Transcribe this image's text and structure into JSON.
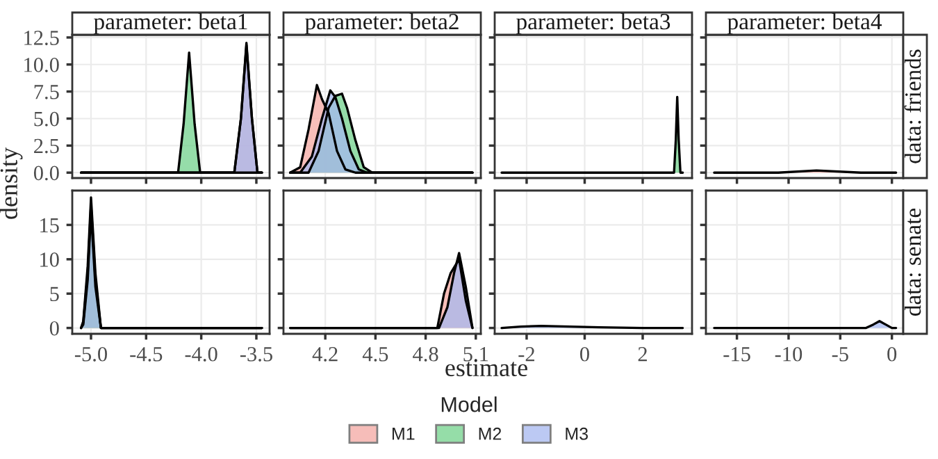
{
  "chart_data": [
    {
      "type": "area",
      "title": "parameter: beta1",
      "ylabel": "density",
      "legend": "bottom",
      "legend_title": "Model",
      "grid": true,
      "tick_labels": "y",
      "xlim": [
        -5.17,
        -3.38
      ],
      "xticks": [
        -5.0,
        -4.5,
        -4.0,
        -3.5
      ],
      "ylim": [
        -0.5,
        12.75
      ],
      "yticks": [
        {
          "value": 0,
          "label": "0.0"
        },
        {
          "value": 2.5,
          "label": "2.5"
        },
        {
          "value": 5,
          "label": "5.0"
        },
        {
          "value": 7.5,
          "label": "7.5"
        },
        {
          "value": 10,
          "label": "10.0"
        },
        {
          "value": 12.5,
          "label": "12.5"
        }
      ],
      "series": [
        {
          "name": "M1",
          "color": "#f4a8a2",
          "x": [
            -5.09,
            -3.7,
            -3.64,
            -3.59,
            -3.54,
            -3.49,
            -3.45
          ],
          "values": [
            0,
            0,
            5,
            11.8,
            5,
            0,
            0
          ]
        },
        {
          "name": "M2",
          "color": "#72d28c",
          "x": [
            -5.09,
            -4.21,
            -4.16,
            -4.11,
            -4.06,
            -4.01,
            -3.45
          ],
          "values": [
            0,
            0,
            4.5,
            11.1,
            4.5,
            0,
            0
          ]
        },
        {
          "name": "M3",
          "color": "#a6b8f0",
          "x": [
            -5.09,
            -3.7,
            -3.64,
            -3.59,
            -3.54,
            -3.49,
            -3.45
          ],
          "values": [
            0,
            0,
            5,
            12,
            5,
            0,
            0
          ]
        }
      ]
    },
    {
      "type": "area",
      "title": "parameter: beta2",
      "grid": true,
      "tick_labels": false,
      "xlim": [
        3.95,
        5.13
      ],
      "xticks": [
        4.2,
        4.5,
        4.8,
        5.1
      ],
      "ylim": [
        -0.5,
        12.75
      ],
      "yticks": [
        0,
        2.5,
        5,
        7.5,
        10,
        12.5
      ],
      "series": [
        {
          "name": "M1",
          "color": "#f4a8a2",
          "x": [
            3.99,
            4.05,
            4.1,
            4.15,
            4.18,
            4.22,
            4.27,
            4.32,
            4.38,
            5.08
          ],
          "values": [
            0,
            0.5,
            4,
            8.1,
            6.8,
            5.5,
            2,
            0.3,
            0,
            0
          ]
        },
        {
          "name": "M2",
          "color": "#72d28c",
          "x": [
            3.99,
            4.1,
            4.16,
            4.22,
            4.26,
            4.3,
            4.33,
            4.38,
            4.43,
            4.48,
            5.08
          ],
          "values": [
            0,
            0,
            2,
            6,
            7.1,
            7.3,
            6,
            3,
            0.5,
            0,
            0
          ]
        },
        {
          "name": "M3",
          "color": "#a6b8f0",
          "x": [
            3.99,
            4.05,
            4.12,
            4.18,
            4.23,
            4.26,
            4.3,
            4.35,
            4.4,
            4.45,
            5.08
          ],
          "values": [
            0,
            0,
            1.5,
            5,
            7.6,
            7,
            5,
            2,
            0.3,
            0,
            0
          ]
        }
      ]
    },
    {
      "type": "area",
      "title": "parameter: beta3",
      "grid": true,
      "tick_labels": false,
      "xlim": [
        -3.1,
        3.7
      ],
      "xticks": [
        -2,
        0,
        2
      ],
      "ylim": [
        -0.5,
        12.75
      ],
      "yticks": [
        0,
        2.5,
        5,
        7.5,
        10,
        12.5
      ],
      "series": [
        {
          "name": "M2",
          "color": "#72d28c",
          "x": [
            -2.86,
            3.08,
            3.14,
            3.19,
            3.24,
            3.3,
            3.38
          ],
          "values": [
            0,
            0,
            3,
            7,
            3,
            0,
            0
          ]
        }
      ]
    },
    {
      "type": "area",
      "title": "parameter: beta4",
      "y2label": "data: friends",
      "grid": true,
      "tick_labels": false,
      "xlim": [
        -18,
        1.1
      ],
      "xticks": [
        -15,
        -10,
        -5,
        0
      ],
      "ylim": [
        -0.5,
        12.75
      ],
      "yticks": [
        0,
        2.5,
        5,
        7.5,
        10,
        12.5
      ],
      "series": [
        {
          "name": "M1",
          "color": "#f4a8a2",
          "x": [
            -17.2,
            -11,
            -7.3,
            -3,
            0.4
          ],
          "values": [
            0,
            0,
            0.2,
            0,
            0
          ]
        }
      ]
    },
    {
      "type": "area",
      "grid": true,
      "xlim": [
        -5.17,
        -3.38
      ],
      "xticks": [
        {
          "value": -5.0,
          "label": "-5.0"
        },
        {
          "value": -4.5,
          "label": "-4.5"
        },
        {
          "value": -4.0,
          "label": "-4.0"
        },
        {
          "value": -3.5,
          "label": "-3.5"
        }
      ],
      "ylim": [
        -0.85,
        20
      ],
      "yticks": [
        0,
        5,
        10,
        15
      ],
      "series": [
        {
          "name": "M1",
          "color": "#f4a8a2",
          "x": [
            -5.09,
            -5.07,
            -5.03,
            -5.0,
            -4.96,
            -4.91,
            -3.45
          ],
          "values": [
            0,
            0.5,
            7,
            17,
            6,
            0,
            0
          ]
        },
        {
          "name": "M2",
          "color": "#72d28c",
          "x": [
            -5.09,
            -5.07,
            -5.03,
            -5.0,
            -4.96,
            -4.91,
            -3.45
          ],
          "values": [
            0,
            0.8,
            8,
            18,
            7,
            0,
            0
          ]
        },
        {
          "name": "M3",
          "color": "#a6b8f0",
          "x": [
            -5.09,
            -5.07,
            -5.03,
            -5.0,
            -4.96,
            -4.91,
            -3.45
          ],
          "values": [
            0,
            1,
            9,
            19,
            8,
            0,
            0
          ]
        }
      ]
    },
    {
      "type": "area",
      "xlabel": "estimate",
      "grid": true,
      "tick_labels": "x",
      "xlim": [
        3.95,
        5.13
      ],
      "xticks": [
        4.2,
        4.5,
        4.8,
        5.1
      ],
      "ylim": [
        -0.85,
        20
      ],
      "yticks": [
        0,
        5,
        10,
        15
      ],
      "series": [
        {
          "name": "M1",
          "color": "#f4a8a2",
          "x": [
            3.99,
            4.87,
            4.91,
            4.95,
            5.0,
            5.04,
            5.08
          ],
          "values": [
            0,
            0,
            5,
            8,
            10,
            4,
            0
          ]
        },
        {
          "name": "M3",
          "color": "#a6b8f0",
          "x": [
            3.99,
            4.88,
            4.93,
            4.97,
            5.0,
            5.04,
            5.08
          ],
          "values": [
            0,
            0,
            3,
            8,
            10.9,
            6,
            0
          ]
        }
      ]
    },
    {
      "type": "area",
      "grid": true,
      "tick_labels": "x",
      "xlim": [
        -3.1,
        3.7
      ],
      "xticks": [
        -2,
        0,
        2
      ],
      "ylim": [
        -0.85,
        20
      ],
      "yticks": [
        0,
        5,
        10,
        15
      ],
      "series": [
        {
          "name": "M3",
          "color": "#a6b8f0",
          "x": [
            -2.86,
            -2.2,
            -1.5,
            -0.5,
            0.5,
            2,
            3.38
          ],
          "values": [
            0,
            0.2,
            0.3,
            0.2,
            0.1,
            0,
            0
          ]
        }
      ]
    },
    {
      "type": "area",
      "y2label": "data: senate",
      "grid": true,
      "tick_labels": "x",
      "xlim": [
        -18,
        1.1
      ],
      "xticks": [
        -15,
        -10,
        -5,
        0
      ],
      "ylim": [
        -0.85,
        20
      ],
      "yticks": [
        0,
        5,
        10,
        15
      ],
      "series": [
        {
          "name": "M3",
          "color": "#a6b8f0",
          "x": [
            -17.2,
            -2.5,
            -1.8,
            -1.2,
            -0.6,
            0,
            0.4
          ],
          "values": [
            0,
            0,
            0.5,
            1,
            0.5,
            0,
            0
          ]
        }
      ]
    }
  ]
}
